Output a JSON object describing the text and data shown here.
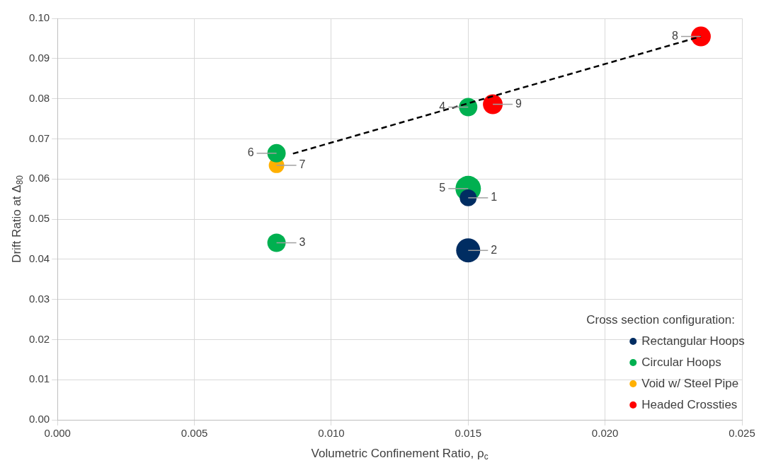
{
  "chart_data": {
    "type": "bubble",
    "xlabel": "Volumetric Confinement Ratio, ρ$_{c}$",
    "ylabel": "Drift Ratio at Δ$_{80}$",
    "legend_title": "Cross section configuration:",
    "legend": "bottom right",
    "grid": true,
    "xlim": [
      0,
      0.025
    ],
    "xticks": [
      {
        "value": 0,
        "label": "0.000"
      },
      {
        "value": 0.005,
        "label": "0.005"
      },
      {
        "value": 0.01,
        "label": "0.010"
      },
      {
        "value": 0.015,
        "label": "0.015"
      },
      {
        "value": 0.02,
        "label": "0.020"
      },
      {
        "value": 0.025,
        "label": "0.025"
      }
    ],
    "ylim": [
      0,
      0.1
    ],
    "yticks": [
      {
        "value": 0,
        "label": "0.00"
      },
      {
        "value": 0.01,
        "label": "0.01"
      },
      {
        "value": 0.02,
        "label": "0.02"
      },
      {
        "value": 0.03,
        "label": "0.03"
      },
      {
        "value": 0.04,
        "label": "0.04"
      },
      {
        "value": 0.05,
        "label": "0.05"
      },
      {
        "value": 0.06,
        "label": "0.06"
      },
      {
        "value": 0.07,
        "label": "0.07"
      },
      {
        "value": 0.08,
        "label": "0.08"
      },
      {
        "value": 0.09,
        "label": "0.09"
      },
      {
        "value": 0.1,
        "label": "0.10"
      }
    ],
    "series": [
      {
        "name": "Rectangular Hoops",
        "color": "#002d62",
        "x": [
          0.015,
          0.015
        ],
        "values": [
          0.0553,
          0.0422
        ],
        "sizes": [
          0.44,
          0.89
        ]
      },
      {
        "name": "Circular Hoops",
        "color": "#00b050",
        "x": [
          0.008,
          0.015,
          0.015,
          0.008
        ],
        "values": [
          0.0441,
          0.0779,
          0.0576,
          0.0664
        ],
        "sizes": [
          0.52,
          0.52,
          1,
          0.52
        ]
      },
      {
        "name": "Void w/ Steel Pipe",
        "color": "#ffb000",
        "x": [
          0.008
        ],
        "values": [
          0.0634
        ],
        "sizes": [
          0.37
        ]
      },
      {
        "name": "Headed Crossties",
        "color": "#ff0000",
        "x": [
          0.0235,
          0.0159
        ],
        "values": [
          0.0955,
          0.0786
        ],
        "sizes": [
          0.6,
          0.6
        ]
      },
      {
        "type": "line",
        "color": "#000000",
        "line_style": "dashed",
        "x": [
          0.0086,
          0.0235
        ],
        "values": [
          0.0663,
          0.0955
        ]
      }
    ],
    "annotations": [
      {
        "text": "1",
        "x": 0.015,
        "y": 0.0553
      },
      {
        "text": "2",
        "x": 0.015,
        "y": 0.0422
      },
      {
        "text": "3",
        "x": 0.008,
        "y": 0.0441
      },
      {
        "text": "4",
        "x": 0.015,
        "y": 0.0779
      },
      {
        "text": "5",
        "x": 0.015,
        "y": 0.0576
      },
      {
        "text": "6",
        "x": 0.008,
        "y": 0.0664
      },
      {
        "text": "7",
        "x": 0.008,
        "y": 0.0634
      },
      {
        "text": "8",
        "x": 0.0235,
        "y": 0.0955
      },
      {
        "text": "9",
        "x": 0.0159,
        "y": 0.0786
      }
    ]
  }
}
